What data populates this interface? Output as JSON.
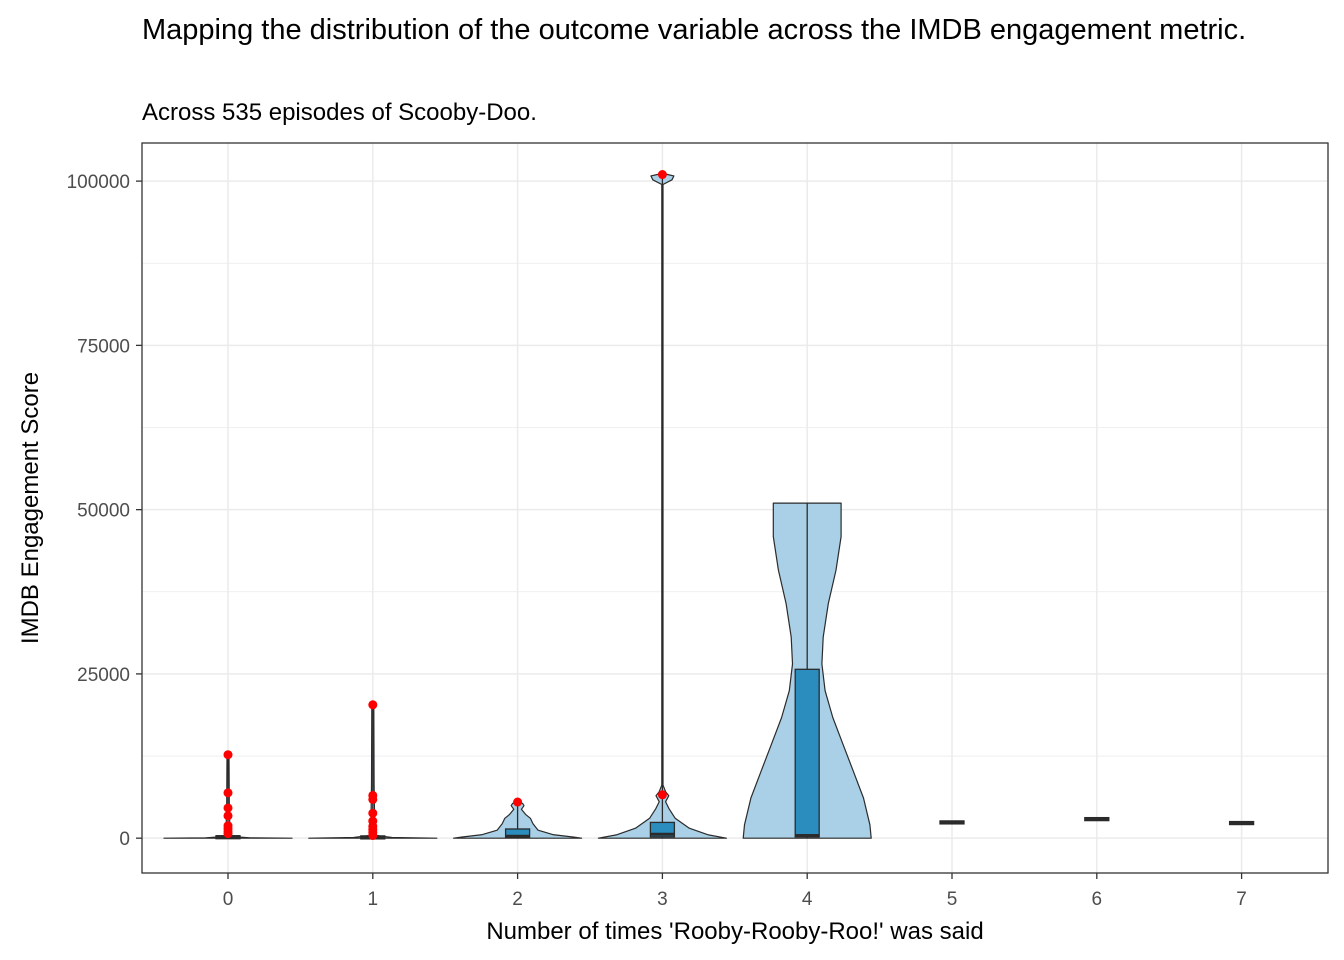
{
  "chart_data": {
    "type": "violin",
    "title": "Mapping the distribution of the outcome variable across the IMDB engagement metric.",
    "subtitle": "Across 535 episodes of Scooby-Doo.",
    "xlabel": "Number of times 'Rooby-Rooby-Roo!' was said",
    "ylabel": "IMDB Engagement Score",
    "categories": [
      "0",
      "1",
      "2",
      "3",
      "4",
      "5",
      "6",
      "7"
    ],
    "ylim": [
      -5300,
      105800
    ],
    "yticks": [
      0,
      25000,
      50000,
      75000,
      100000
    ],
    "grid": true,
    "colors": {
      "violin_fill": "#a9d0e6",
      "box_fill": "#2b8cbe",
      "outlier": "#ff0000",
      "outline": "#2b2b2b"
    },
    "groups": [
      {
        "x": "0",
        "violin_min": 0,
        "violin_max": 12700,
        "q1": 50,
        "median": 150,
        "q3": 250,
        "whisker_low": 0,
        "whisker_high": 12700,
        "outliers": [
          700,
          1100,
          1500,
          1900,
          3400,
          4600,
          6900,
          12700
        ]
      },
      {
        "x": "1",
        "violin_min": 0,
        "violin_max": 20300,
        "q1": 40,
        "median": 110,
        "q3": 200,
        "whisker_low": 0,
        "whisker_high": 20300,
        "outliers": [
          400,
          900,
          1300,
          1800,
          2600,
          3800,
          5900,
          6500,
          20300
        ]
      },
      {
        "x": "2",
        "violin_min": 0,
        "violin_max": 5500,
        "q1": 100,
        "median": 300,
        "q3": 1400,
        "whisker_low": 0,
        "whisker_high": 5500,
        "outliers": [
          5500
        ]
      },
      {
        "x": "3",
        "violin_min": 0,
        "violin_max": 101000,
        "q1": 200,
        "median": 600,
        "q3": 2400,
        "whisker_low": 0,
        "whisker_high": 101000,
        "outliers": [
          6600,
          101000
        ]
      },
      {
        "x": "4",
        "violin_min": 0,
        "violin_max": 51000,
        "q1": 200,
        "median": 400,
        "q3": 25700,
        "whisker_low": 0,
        "whisker_high": 51000,
        "outliers": []
      },
      {
        "x": "5",
        "violin_min": 2400,
        "violin_max": 2400,
        "q1": 2400,
        "median": 2400,
        "q3": 2400,
        "whisker_low": 2400,
        "whisker_high": 2400,
        "outliers": []
      },
      {
        "x": "6",
        "violin_min": 2900,
        "violin_max": 2900,
        "q1": 2900,
        "median": 2900,
        "q3": 2900,
        "whisker_low": 2900,
        "whisker_high": 2900,
        "outliers": []
      },
      {
        "x": "7",
        "violin_min": 2300,
        "violin_max": 2300,
        "q1": 2300,
        "median": 2300,
        "q3": 2300,
        "whisker_low": 2300,
        "whisker_high": 2300,
        "outliers": []
      }
    ]
  }
}
